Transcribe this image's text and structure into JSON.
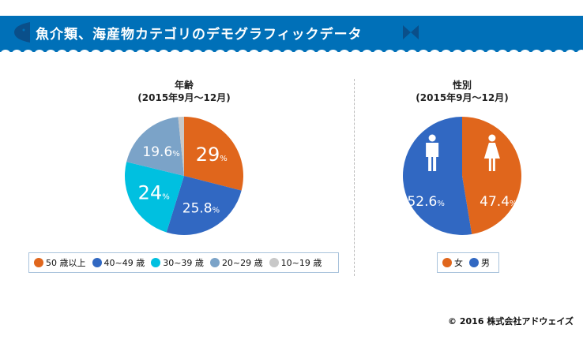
{
  "header": {
    "title": "魚介類、海産物カテゴリのデモグラフィックデータ",
    "color": "#0070b8"
  },
  "chart_data": [
    {
      "type": "pie",
      "title": "年齢",
      "subtitle": "(2015年9月～12月)",
      "slices": [
        {
          "name": "50 歳以上",
          "value": 29,
          "label": "29",
          "color": "#e0661c"
        },
        {
          "name": "40~49 歳",
          "value": 25.8,
          "label": "25.8",
          "color": "#3168c2"
        },
        {
          "name": "30~39 歳",
          "value": 24,
          "label": "24",
          "color": "#00c0e0"
        },
        {
          "name": "20~29 歳",
          "value": 19.6,
          "label": "19.6",
          "color": "#7ba3c8"
        },
        {
          "name": "10~19 歳",
          "value": 1.6,
          "label": "",
          "color": "#c8c8c8"
        }
      ]
    },
    {
      "type": "pie",
      "title": "性別",
      "subtitle": "(2015年9月～12月)",
      "slices": [
        {
          "name": "女",
          "value": 47.4,
          "label": "47.4",
          "color": "#e0661c",
          "icon": "female-icon"
        },
        {
          "name": "男",
          "value": 52.6,
          "label": "52.6",
          "color": "#3168c2",
          "icon": "male-icon"
        }
      ]
    }
  ],
  "percent_sign": "%",
  "footer": {
    "copyright": "© 2016 株式会社アドウェイズ"
  }
}
